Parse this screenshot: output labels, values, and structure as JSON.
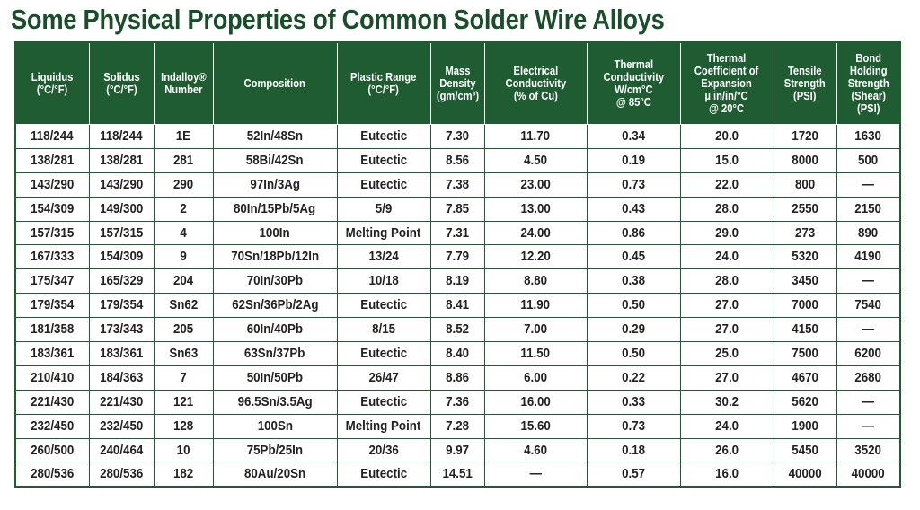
{
  "title": "Some Physical Properties of Common Solder Wire Alloys",
  "columns": [
    {
      "lines": [
        "Liquidus",
        "(°C/°F)"
      ]
    },
    {
      "lines": [
        "Solidus",
        "(°C/°F)"
      ]
    },
    {
      "lines": [
        "Indalloy®",
        "Number"
      ]
    },
    {
      "lines": [
        "Composition"
      ]
    },
    {
      "lines": [
        "Plastic Range",
        "(°C/°F)"
      ]
    },
    {
      "lines": [
        "Mass",
        "Density",
        "(gm/cm³)"
      ]
    },
    {
      "lines": [
        "Electrical",
        "Conductivity",
        "(% of Cu)"
      ]
    },
    {
      "lines": [
        "Thermal",
        "Conductivity",
        "W/cm°C",
        "@ 85°C"
      ]
    },
    {
      "lines": [
        "Thermal",
        "Coefficient of",
        "Expansion",
        "µ in/in/°C",
        "@ 20°C"
      ]
    },
    {
      "lines": [
        "Tensile",
        "Strength",
        "(PSI)"
      ]
    },
    {
      "lines": [
        "Bond",
        "Holding",
        "Strength",
        "(Shear)",
        "(PSI)"
      ]
    }
  ],
  "rows": [
    [
      "118/244",
      "118/244",
      "1E",
      "52In/48Sn",
      "Eutectic",
      "7.30",
      "11.70",
      "0.34",
      "20.0",
      "1720",
      "1630"
    ],
    [
      "138/281",
      "138/281",
      "281",
      "58Bi/42Sn",
      "Eutectic",
      "8.56",
      "4.50",
      "0.19",
      "15.0",
      "8000",
      "500"
    ],
    [
      "143/290",
      "143/290",
      "290",
      "97In/3Ag",
      "Eutectic",
      "7.38",
      "23.00",
      "0.73",
      "22.0",
      "800",
      "—"
    ],
    [
      "154/309",
      "149/300",
      "2",
      "80In/15Pb/5Ag",
      "5/9",
      "7.85",
      "13.00",
      "0.43",
      "28.0",
      "2550",
      "2150"
    ],
    [
      "157/315",
      "157/315",
      "4",
      "100In",
      "Melting Point",
      "7.31",
      "24.00",
      "0.86",
      "29.0",
      "273",
      "890"
    ],
    [
      "167/333",
      "154/309",
      "9",
      "70Sn/18Pb/12In",
      "13/24",
      "7.79",
      "12.20",
      "0.45",
      "24.0",
      "5320",
      "4190"
    ],
    [
      "175/347",
      "165/329",
      "204",
      "70In/30Pb",
      "10/18",
      "8.19",
      "8.80",
      "0.38",
      "28.0",
      "3450",
      "—"
    ],
    [
      "179/354",
      "179/354",
      "Sn62",
      "62Sn/36Pb/2Ag",
      "Eutectic",
      "8.41",
      "11.90",
      "0.50",
      "27.0",
      "7000",
      "7540"
    ],
    [
      "181/358",
      "173/343",
      "205",
      "60In/40Pb",
      "8/15",
      "8.52",
      "7.00",
      "0.29",
      "27.0",
      "4150",
      "—"
    ],
    [
      "183/361",
      "183/361",
      "Sn63",
      "63Sn/37Pb",
      "Eutectic",
      "8.40",
      "11.50",
      "0.50",
      "25.0",
      "7500",
      "6200"
    ],
    [
      "210/410",
      "184/363",
      "7",
      "50In/50Pb",
      "26/47",
      "8.86",
      "6.00",
      "0.22",
      "27.0",
      "4670",
      "2680"
    ],
    [
      "221/430",
      "221/430",
      "121",
      "96.5Sn/3.5Ag",
      "Eutectic",
      "7.36",
      "16.00",
      "0.33",
      "30.2",
      "5620",
      "—"
    ],
    [
      "232/450",
      "232/450",
      "128",
      "100Sn",
      "Melting Point",
      "7.28",
      "15.60",
      "0.73",
      "24.0",
      "1900",
      "—"
    ],
    [
      "260/500",
      "240/464",
      "10",
      "75Pb/25In",
      "20/36",
      "9.97",
      "4.60",
      "0.18",
      "26.0",
      "5450",
      "3520"
    ],
    [
      "280/536",
      "280/536",
      "182",
      "80Au/20Sn",
      "Eutectic",
      "14.51",
      "—",
      "0.57",
      "16.0",
      "40000",
      "40000"
    ]
  ]
}
